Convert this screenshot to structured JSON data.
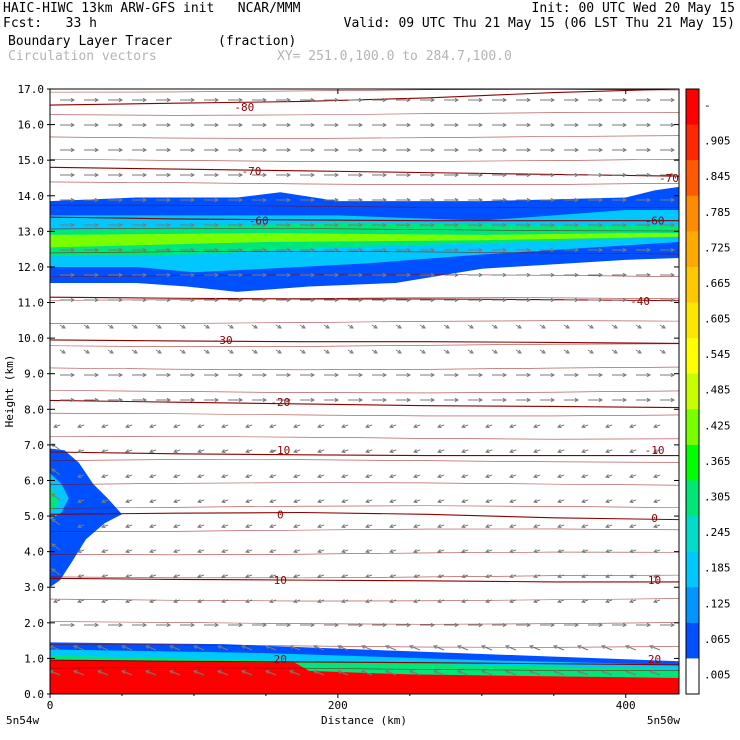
{
  "header": {
    "title": "HAIC-HIWC 13km ARW-GFS init   NCAR/MMM",
    "init": "Init: 00 UTC Wed 20 May 15",
    "fcst": "Fcst:   33 h",
    "valid": "Valid: 09 UTC Thu 21 May 15 (06 LST Thu 21 May 15)",
    "field": "Boundary Layer Tracer",
    "units": "(fraction)",
    "vectors": "Circulation vectors",
    "xy": "XY= 251.0,100.0 to 284.7,100.0"
  },
  "chart_data": {
    "type": "heatmap",
    "xlabel": "Distance (km)",
    "ylabel": "Height (km)",
    "xlim": [
      0,
      437
    ],
    "ylim": [
      0,
      17
    ],
    "x_ticks": [
      0,
      200,
      400
    ],
    "y_ticks": [
      "0.0",
      "1.0",
      "2.0",
      "3.0",
      "4.0",
      "5.0",
      "6.0",
      "7.0",
      "8.0",
      "9.0",
      "10.0",
      "11.0",
      "12.0",
      "13.0",
      "14.0",
      "15.0",
      "16.0",
      "17.0"
    ],
    "x_end_labels": {
      "left": "5n54w",
      "right": "5n50w"
    },
    "colorbar": {
      "labels": [
        "-",
        ".905",
        ".845",
        ".785",
        ".725",
        ".665",
        ".605",
        ".545",
        ".485",
        ".425",
        ".365",
        ".305",
        ".245",
        ".185",
        ".125",
        ".065",
        ".005"
      ],
      "colors": [
        "#ff0000",
        "#ff2800",
        "#ff5a00",
        "#ff8c00",
        "#ffaa00",
        "#ffc800",
        "#ffe600",
        "#ffff00",
        "#c8ff00",
        "#78ff00",
        "#00ff00",
        "#00e678",
        "#00dcc8",
        "#00c8ff",
        "#0096ff",
        "#0050ff",
        "#ffffff"
      ]
    },
    "fill_levels": [
      {
        "level": 0.005,
        "color": "#0050ff"
      },
      {
        "level": 0.125,
        "color": "#00c8ff"
      },
      {
        "level": 0.305,
        "color": "#00e678"
      },
      {
        "level": 0.425,
        "color": "#78ff00"
      },
      {
        "level": 0.905,
        "color": "#ff0000"
      }
    ],
    "contour_labels": [
      {
        "text": "-80",
        "x": 135,
        "y": 16.5
      },
      {
        "text": "-70",
        "x": 140,
        "y": 14.7
      },
      {
        "text": "-70",
        "x": 430,
        "y": 14.5
      },
      {
        "text": "-60",
        "x": 145,
        "y": 13.3
      },
      {
        "text": "-60",
        "x": 420,
        "y": 13.3
      },
      {
        "text": "-40",
        "x": 410,
        "y": 11.05
      },
      {
        "text": "-30",
        "x": 120,
        "y": 9.95
      },
      {
        "text": "-20",
        "x": 160,
        "y": 8.2
      },
      {
        "text": "-10",
        "x": 160,
        "y": 6.85
      },
      {
        "text": "-10",
        "x": 420,
        "y": 6.85
      },
      {
        "text": "0",
        "x": 160,
        "y": 5.05
      },
      {
        "text": "0",
        "x": 420,
        "y": 4.95
      },
      {
        "text": "10",
        "x": 160,
        "y": 3.2
      },
      {
        "text": "10",
        "x": 420,
        "y": 3.2
      },
      {
        "text": "20",
        "x": 160,
        "y": 0.98
      },
      {
        "text": "20",
        "x": 420,
        "y": 0.98
      }
    ],
    "temperature_isotherms": [
      {
        "value": -80,
        "height_km": [
          16.55,
          16.6,
          16.65,
          16.75,
          16.9,
          17.0
        ]
      },
      {
        "value": -70,
        "height_km": [
          14.8,
          14.75,
          14.7,
          14.65,
          14.6,
          14.55
        ]
      },
      {
        "value": -60,
        "height_km": [
          13.4,
          13.35,
          13.32,
          13.3,
          13.3,
          13.3
        ]
      },
      {
        "value": -40,
        "height_km": [
          11.15,
          11.12,
          11.1,
          11.1,
          11.08,
          11.05
        ]
      },
      {
        "value": -30,
        "height_km": [
          9.95,
          9.92,
          9.9,
          9.9,
          9.88,
          9.85
        ]
      },
      {
        "value": -20,
        "height_km": [
          8.25,
          8.2,
          8.15,
          8.1,
          8.08,
          8.05
        ]
      },
      {
        "value": -10,
        "height_km": [
          6.8,
          6.75,
          6.72,
          6.7,
          6.7,
          6.7
        ]
      },
      {
        "value": 0,
        "height_km": [
          5.05,
          5.08,
          5.1,
          5.05,
          4.95,
          4.9
        ]
      },
      {
        "value": 10,
        "height_km": [
          3.25,
          3.22,
          3.2,
          3.18,
          3.15,
          3.15
        ]
      },
      {
        "value": 20,
        "height_km": [
          0.95,
          0.92,
          0.9,
          0.88,
          0.85,
          0.82
        ]
      }
    ]
  }
}
